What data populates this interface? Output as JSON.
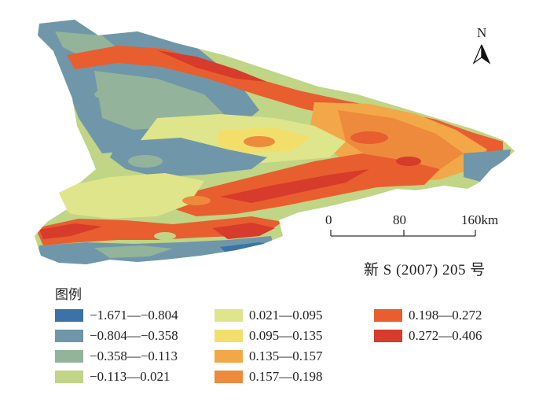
{
  "map": {
    "north_label": "N",
    "scale_ticks": [
      "0",
      "80",
      "160km"
    ],
    "map_number": "新 S (2007) 205 号"
  },
  "legend": {
    "title": "图例",
    "items": [
      {
        "label": "−1.671—−0.804",
        "color": "#3b73a6",
        "low": -1.671,
        "high": -0.804
      },
      {
        "label": "−0.804—−0.358",
        "color": "#6f97a9",
        "low": -0.804,
        "high": -0.358
      },
      {
        "label": "−0.358—−0.113",
        "color": "#93b39a",
        "low": -0.358,
        "high": -0.113
      },
      {
        "label": "−0.113—0.021",
        "color": "#c0d585",
        "low": -0.113,
        "high": 0.021
      },
      {
        "label": "0.021—0.095",
        "color": "#dfe58a",
        "low": 0.021,
        "high": 0.095
      },
      {
        "label": "0.095—0.135",
        "color": "#f2df6b",
        "low": 0.095,
        "high": 0.135
      },
      {
        "label": "0.135—0.157",
        "color": "#f2a848",
        "low": 0.135,
        "high": 0.157
      },
      {
        "label": "0.157—0.198",
        "color": "#ee8a3c",
        "low": 0.157,
        "high": 0.198
      },
      {
        "label": "0.198—0.272",
        "color": "#e85e2f",
        "low": 0.198,
        "high": 0.272
      },
      {
        "label": "0.272—0.406",
        "color": "#d63b2b",
        "low": 0.272,
        "high": 0.406
      }
    ]
  }
}
